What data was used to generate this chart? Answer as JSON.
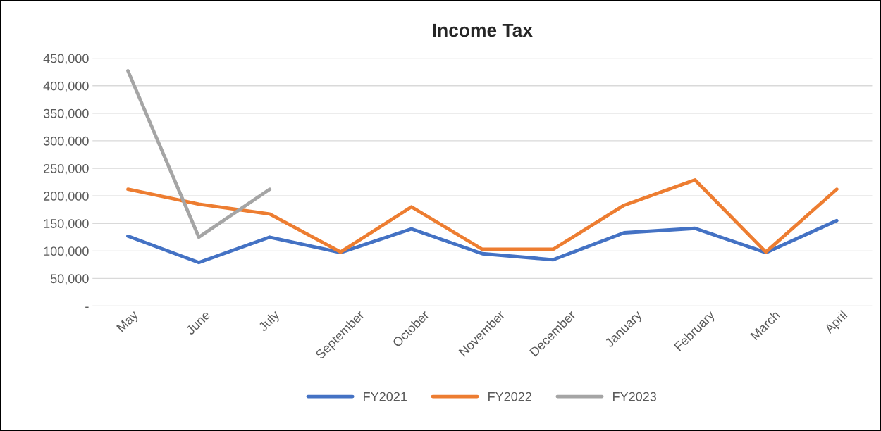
{
  "chart_data": {
    "type": "line",
    "title": "Income Tax",
    "categories": [
      "May",
      "June",
      "July",
      "September",
      "October",
      "November",
      "December",
      "January",
      "February",
      "March",
      "April"
    ],
    "series": [
      {
        "name": "FY2021",
        "color": "#4472c4",
        "values": [
          127000,
          79000,
          125000,
          97000,
          140000,
          95000,
          84000,
          133000,
          141000,
          97000,
          155000
        ]
      },
      {
        "name": "FY2022",
        "color": "#ed7d31",
        "values": [
          212000,
          185000,
          167000,
          98000,
          180000,
          103000,
          103000,
          183000,
          229000,
          98000,
          212000
        ]
      },
      {
        "name": "FY2023",
        "color": "#a5a5a5",
        "values": [
          427000,
          125000,
          212000,
          null,
          null,
          null,
          null,
          null,
          null,
          null,
          null
        ]
      }
    ],
    "ylim": [
      0,
      450000
    ],
    "yticks": [
      {
        "value": 0,
        "label": "-"
      },
      {
        "value": 50000,
        "label": "50,000"
      },
      {
        "value": 100000,
        "label": "100,000"
      },
      {
        "value": 150000,
        "label": "150,000"
      },
      {
        "value": 200000,
        "label": "200,000"
      },
      {
        "value": 250000,
        "label": "250,000"
      },
      {
        "value": 300000,
        "label": "300,000"
      },
      {
        "value": 350000,
        "label": "350,000"
      },
      {
        "value": 400000,
        "label": "400,000"
      },
      {
        "value": 450000,
        "label": "450,000"
      }
    ],
    "grid": "y",
    "legend": "bottom",
    "marker": "none",
    "line_style": "solid"
  }
}
